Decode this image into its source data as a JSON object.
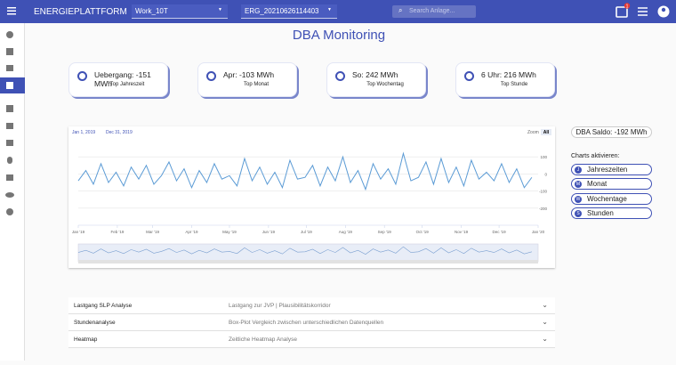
{
  "header": {
    "title": "ENERGIEPLATTFORM",
    "selects": [
      "Work_10T",
      "ERG_20210626114403"
    ],
    "search_placeholder": "Search Anlage...",
    "badge": "1"
  },
  "page_title": "DBA Monitoring",
  "cards": [
    {
      "main": "Uebergang: -151 MWh",
      "sub": "Top Jahreszeit"
    },
    {
      "main": "Apr: -103 MWh",
      "sub": "Top Monat"
    },
    {
      "main": "So: 242 MWh",
      "sub": "Top Wochentag"
    },
    {
      "main": "6 Uhr: 216 MWh",
      "sub": "Top Stunde"
    }
  ],
  "chart_data": {
    "type": "line",
    "color": "#5b9bd5",
    "range_selector": {
      "from": "Jan 1, 2019",
      "to": "Dec 31, 2019",
      "zoom": "Zoom",
      "all": "All"
    },
    "x": [
      0,
      6,
      12,
      18,
      24,
      30,
      36,
      42,
      48,
      54,
      60,
      66,
      72,
      78,
      84,
      90,
      96,
      102,
      108,
      114,
      120,
      126,
      132,
      138,
      144,
      150,
      156,
      162,
      168,
      174,
      180,
      186,
      192,
      198,
      204,
      210,
      216,
      222,
      228,
      234,
      240,
      246,
      252,
      258,
      264,
      270,
      276,
      282,
      288,
      294,
      300,
      306,
      312,
      318,
      324,
      330,
      336,
      342,
      348,
      354,
      360
    ],
    "values": [
      -40,
      20,
      -60,
      60,
      -50,
      10,
      -70,
      40,
      -30,
      50,
      -60,
      -10,
      70,
      -40,
      30,
      -80,
      20,
      -50,
      60,
      -30,
      -10,
      -70,
      90,
      -40,
      40,
      -60,
      10,
      -80,
      80,
      -30,
      -20,
      50,
      -70,
      40,
      -40,
      100,
      -50,
      20,
      -90,
      60,
      -30,
      30,
      -60,
      120,
      -40,
      -20,
      70,
      -60,
      90,
      -50,
      40,
      -70,
      80,
      -30,
      10,
      -40,
      60,
      -50,
      30,
      -80,
      -20
    ],
    "xlim": [
      0,
      365
    ],
    "xticks": [
      {
        "value": 0,
        "label": "Jan '19"
      },
      {
        "value": 31,
        "label": "Feb '19"
      },
      {
        "value": 59,
        "label": "Mar '19"
      },
      {
        "value": 90,
        "label": "Apr '19"
      },
      {
        "value": 120,
        "label": "May '19"
      },
      {
        "value": 151,
        "label": "Jun '19"
      },
      {
        "value": 181,
        "label": "Jul '19"
      },
      {
        "value": 212,
        "label": "Aug '19"
      },
      {
        "value": 243,
        "label": "Sep '19"
      },
      {
        "value": 273,
        "label": "Oct '19"
      },
      {
        "value": 304,
        "label": "Nov '19"
      },
      {
        "value": 334,
        "label": "Dec '19"
      },
      {
        "value": 365,
        "label": "Jan '20"
      }
    ],
    "ylim": [
      -300,
      200
    ],
    "yticks": [
      -200,
      -100,
      0,
      100
    ],
    "grid": true
  },
  "saldo": "DBA Saldo: -192 MWh",
  "charts_label": "Charts aktivieren:",
  "toggles": [
    {
      "icon": "J",
      "label": "Jahreszeiten"
    },
    {
      "icon": "M",
      "label": "Monat"
    },
    {
      "icon": "W",
      "label": "Wochentage"
    },
    {
      "icon": "S",
      "label": "Stunden"
    }
  ],
  "panels": [
    {
      "title": "Lastgang SLP Analyse",
      "description": "Lastgang zur JVP | Plausibilitätskorridor"
    },
    {
      "title": "Stundenanalyse",
      "description": "Box-Plot Vergleich zwischen unterschiedlichen Datenquellen"
    },
    {
      "title": "Heatmap",
      "description": "Zeitliche Heatmap Analyse"
    }
  ]
}
